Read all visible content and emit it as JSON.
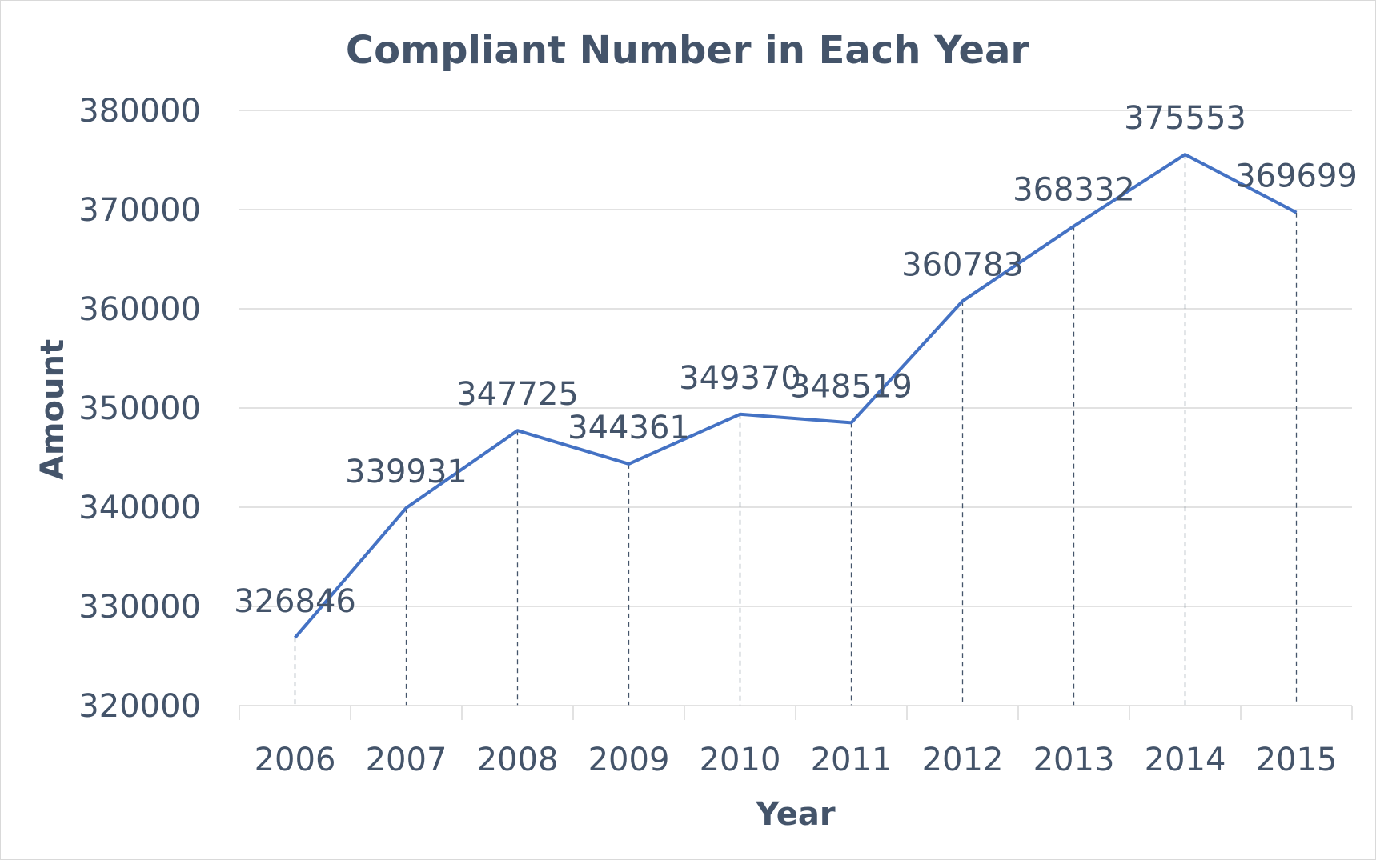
{
  "chart_data": {
    "type": "line",
    "title": "Compliant Number in Each Year",
    "xlabel": "Year",
    "ylabel": "Amount",
    "categories": [
      "2006",
      "2007",
      "2008",
      "2009",
      "2010",
      "2011",
      "2012",
      "2013",
      "2014",
      "2015"
    ],
    "series": [
      {
        "values": [
          326846,
          339931,
          347725,
          344361,
          349370,
          348519,
          360783,
          368332,
          375553,
          369699
        ]
      }
    ],
    "ylim": [
      320000,
      380000
    ],
    "yticks": [
      320000,
      330000,
      340000,
      350000,
      360000,
      370000,
      380000
    ],
    "grid": true,
    "drop_lines": true,
    "data_labels": true,
    "legend": "none",
    "colors": {
      "series": "#4472c4",
      "text": "#44546a",
      "grid": "#d9d9d9"
    }
  }
}
